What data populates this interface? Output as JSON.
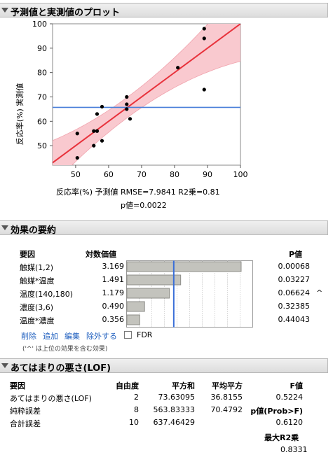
{
  "sections": {
    "plot_title": "予測値と実測値のプロット",
    "effects_title": "効果の要約",
    "lof_title": "あてはまりの悪さ(LOF)"
  },
  "chart_data": {
    "type": "scatter",
    "ylabel": "反応率(%) 実測値",
    "xlabel": "反応率(%) 予測値 RMSE=7.9841 R2乗=0.81",
    "pvalue_label": "p値=0.0022",
    "xlim": [
      43,
      100
    ],
    "ylim": [
      42,
      100
    ],
    "xticks": [
      50,
      60,
      70,
      80,
      90,
      100
    ],
    "yticks": [
      50,
      60,
      70,
      80,
      90,
      100
    ],
    "mean_line_y": 65.7,
    "points": [
      {
        "x": 50.5,
        "y": 45
      },
      {
        "x": 50.5,
        "y": 55
      },
      {
        "x": 55.5,
        "y": 50
      },
      {
        "x": 55.5,
        "y": 56
      },
      {
        "x": 56.5,
        "y": 56
      },
      {
        "x": 56.5,
        "y": 63
      },
      {
        "x": 58,
        "y": 52
      },
      {
        "x": 58,
        "y": 66
      },
      {
        "x": 65.5,
        "y": 65
      },
      {
        "x": 65.5,
        "y": 67
      },
      {
        "x": 65.5,
        "y": 70
      },
      {
        "x": 66.5,
        "y": 61
      },
      {
        "x": 81,
        "y": 82
      },
      {
        "x": 89,
        "y": 73
      },
      {
        "x": 89,
        "y": 94
      },
      {
        "x": 89,
        "y": 98
      }
    ],
    "fit_color": "#e8323c",
    "band_color": "#f9c9cf",
    "mean_color": "#4a7fd9"
  },
  "effects": {
    "header_source": "要因",
    "header_logworth": "対数価値",
    "header_pvalue": "P値",
    "bar_max": 3.5,
    "threshold": 1.3,
    "rows": [
      {
        "source": "触媒(1,2)",
        "logworth": 3.169,
        "logworth_text": "3.169",
        "pvalue": "0.00068",
        "marker": ""
      },
      {
        "source": "触媒*温度",
        "logworth": 1.491,
        "logworth_text": "1.491",
        "pvalue": "0.03227",
        "marker": ""
      },
      {
        "source": "温度(140,180)",
        "logworth": 1.179,
        "logworth_text": "1.179",
        "pvalue": "0.06624",
        "marker": "^"
      },
      {
        "source": "濃度(3,6)",
        "logworth": 0.49,
        "logworth_text": "0.490",
        "pvalue": "0.32385",
        "marker": ""
      },
      {
        "source": "温度*濃度",
        "logworth": 0.356,
        "logworth_text": "0.356",
        "pvalue": "0.44043",
        "marker": ""
      }
    ],
    "actions": {
      "remove": "削除",
      "add": "追加",
      "edit": "編集",
      "exclude": "除外する"
    },
    "fdr_label": "FDR",
    "note": "('^' は上位の効果を含む効果)"
  },
  "lof": {
    "headers": {
      "source": "要因",
      "df": "自由度",
      "ss": "平方和",
      "ms": "平均平方",
      "f": "F値"
    },
    "rows": [
      {
        "source": "あてはまりの悪さ(LOF)",
        "df": "2",
        "ss": "73.63095",
        "ms": "36.8155",
        "f": "0.5224"
      },
      {
        "source": "純粋誤差",
        "df": "8",
        "ss": "563.83333",
        "ms": "70.4792",
        "f": "p値(Prob>F)"
      },
      {
        "source": "合計誤差",
        "df": "10",
        "ss": "637.46429",
        "ms": "",
        "f": "0.6120"
      }
    ],
    "max_r2_label": "最大R2乗",
    "max_r2_value": "0.8331"
  }
}
